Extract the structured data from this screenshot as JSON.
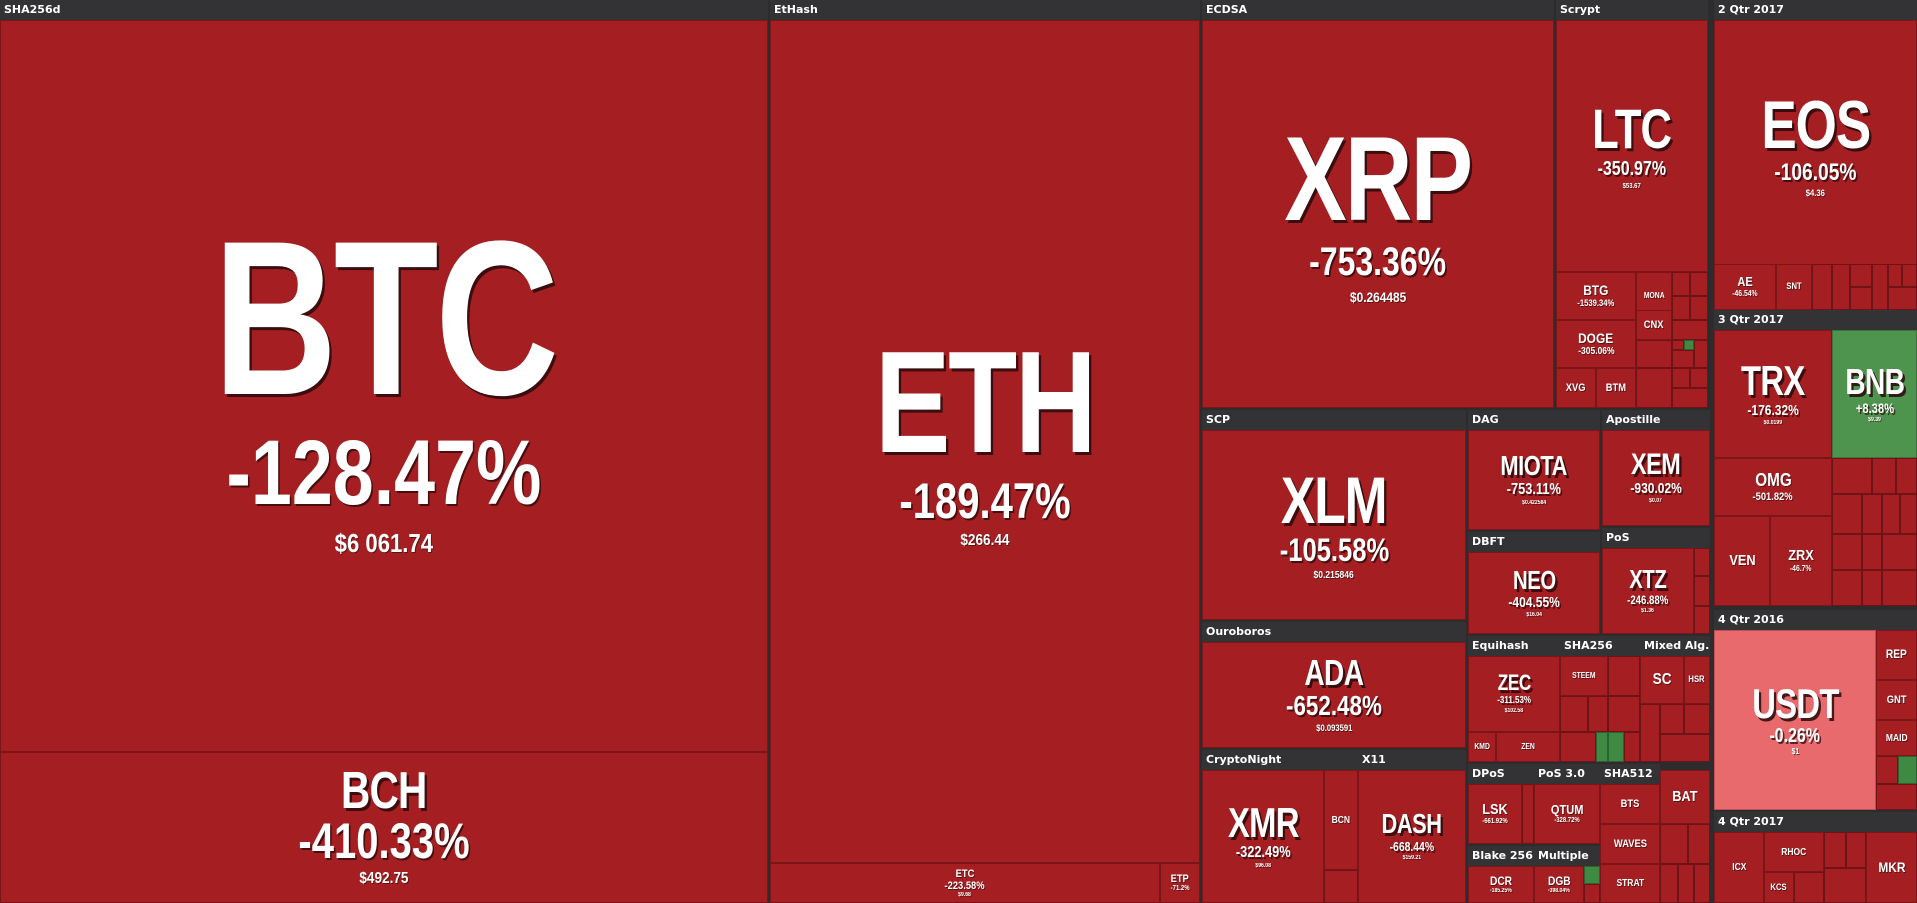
{
  "groups": {
    "sha256d": "SHA256d",
    "ethash": "EtHash",
    "ecdsa": "ECDSA",
    "scrypt": "Scrypt",
    "q2_2017": "2 Qtr 2017",
    "scp": "SCP",
    "dag": "DAG",
    "apostille": "Apostille",
    "dbft": "DBFT",
    "pos": "PoS",
    "q3_2017": "3 Qtr 2017",
    "ouroboros": "Ouroboros",
    "equihash": "Equihash",
    "sha256": "SHA256",
    "mixed": "Mixed Alg...",
    "q4_2016": "4 Qtr 2016",
    "cryptonight": "CryptoNight",
    "x11": "X11",
    "dpos": "DPoS",
    "pos30": "PoS 3.0",
    "sha512": "SHA512",
    "q4_2017": "4 Qtr 2017",
    "blake256": "Blake 256",
    "multiple": "Multiple"
  },
  "tiles": {
    "btc": {
      "sym": "BTC",
      "pct": "-128.47%",
      "price": "$6 061.74"
    },
    "bch": {
      "sym": "BCH",
      "pct": "-410.33%",
      "price": "$492.75"
    },
    "eth": {
      "sym": "ETH",
      "pct": "-189.47%",
      "price": "$266.44"
    },
    "etc": {
      "sym": "ETC",
      "pct": "-223.58%",
      "price": "$9.68"
    },
    "etp": {
      "sym": "ETP",
      "pct": "-71.2%"
    },
    "xrp": {
      "sym": "XRP",
      "pct": "-753.36%",
      "price": "$0.264485"
    },
    "ltc": {
      "sym": "LTC",
      "pct": "-350.97%",
      "price": "$53.67"
    },
    "btg": {
      "sym": "BTG",
      "pct": "-1539.34%"
    },
    "mona": {
      "sym": "MONA"
    },
    "doge": {
      "sym": "DOGE",
      "pct": "-305.06%"
    },
    "cnx": {
      "sym": "CNX"
    },
    "xvg": {
      "sym": "XVG"
    },
    "btm": {
      "sym": "BTM"
    },
    "eos": {
      "sym": "EOS",
      "pct": "-106.05%",
      "price": "$4.36"
    },
    "ae": {
      "sym": "AE",
      "pct": "-46.54%"
    },
    "snt": {
      "sym": "SNT"
    },
    "xlm": {
      "sym": "XLM",
      "pct": "-105.58%",
      "price": "$0.215846"
    },
    "miota": {
      "sym": "MIOTA",
      "pct": "-753.11%",
      "price": "$0.422584"
    },
    "xem": {
      "sym": "XEM",
      "pct": "-930.02%",
      "price": "$0.07"
    },
    "neo": {
      "sym": "NEO",
      "pct": "-404.55%",
      "price": "$16.04"
    },
    "xtz": {
      "sym": "XTZ",
      "pct": "-246.88%",
      "price": "$1.36"
    },
    "trx": {
      "sym": "TRX",
      "pct": "-176.32%",
      "price": "$0.0199"
    },
    "bnb": {
      "sym": "BNB",
      "pct": "+8.38%",
      "price": "$9.39"
    },
    "omg": {
      "sym": "OMG",
      "pct": "-501.82%"
    },
    "ven": {
      "sym": "VEN"
    },
    "zrx": {
      "sym": "ZRX",
      "pct": "-46.7%"
    },
    "ada": {
      "sym": "ADA",
      "pct": "-652.48%",
      "price": "$0.093591"
    },
    "zec": {
      "sym": "ZEC",
      "pct": "-311.53%",
      "price": "$102.58"
    },
    "kmd": {
      "sym": "KMD"
    },
    "zen": {
      "sym": "ZEN"
    },
    "steem": {
      "sym": "STEEM"
    },
    "sc": {
      "sym": "SC"
    },
    "hsr": {
      "sym": "HSR"
    },
    "usdt": {
      "sym": "USDT",
      "pct": "-0.26%",
      "price": "$1"
    },
    "rep": {
      "sym": "REP"
    },
    "gnt": {
      "sym": "GNT"
    },
    "maid": {
      "sym": "MAID"
    },
    "xmr": {
      "sym": "XMR",
      "pct": "-322.49%",
      "price": "$96.08"
    },
    "bcn": {
      "sym": "BCN"
    },
    "dash": {
      "sym": "DASH",
      "pct": "-668.44%",
      "price": "$159.21"
    },
    "lsk": {
      "sym": "LSK",
      "pct": "-661.92%"
    },
    "qtum": {
      "sym": "QTUM",
      "pct": "-328.72%"
    },
    "bts": {
      "sym": "BTS"
    },
    "bat": {
      "sym": "BAT"
    },
    "waves": {
      "sym": "WAVES"
    },
    "icx": {
      "sym": "ICX"
    },
    "rhoc": {
      "sym": "RHOC"
    },
    "kcs": {
      "sym": "KCS"
    },
    "mkr": {
      "sym": "MKR"
    },
    "dcr": {
      "sym": "DCR",
      "pct": "-185.25%"
    },
    "dgb": {
      "sym": "DGB",
      "pct": "-398.04%"
    },
    "strat": {
      "sym": "STRAT"
    }
  }
}
